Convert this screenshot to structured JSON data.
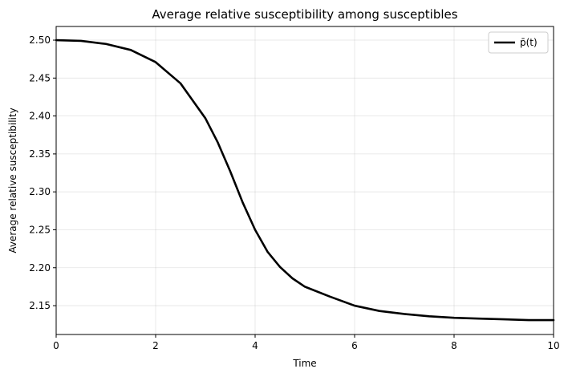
{
  "chart_data": {
    "type": "line",
    "title": "Average relative susceptibility among susceptibles",
    "xlabel": "Time",
    "ylabel": "Average relative susceptibility",
    "xlim": [
      0,
      10
    ],
    "ylim": [
      2.112,
      2.518
    ],
    "xticks": [
      0,
      2,
      4,
      6,
      8,
      10
    ],
    "xtick_labels": [
      "0",
      "2",
      "4",
      "6",
      "8",
      "10"
    ],
    "yticks": [
      2.15,
      2.2,
      2.25,
      2.3,
      2.35,
      2.4,
      2.45,
      2.5
    ],
    "ytick_labels": [
      "2.15",
      "2.20",
      "2.25",
      "2.30",
      "2.35",
      "2.40",
      "2.45",
      "2.50"
    ],
    "grid": true,
    "legend_position": "top-right",
    "series": [
      {
        "name": "p̄(t)",
        "color": "#000000",
        "x": [
          0,
          0.5,
          1,
          1.5,
          2,
          2.5,
          3,
          3.25,
          3.5,
          3.75,
          4,
          4.25,
          4.5,
          4.75,
          5,
          5.5,
          6,
          6.5,
          7,
          7.5,
          8,
          8.5,
          9,
          9.5,
          10
        ],
        "y": [
          2.5,
          2.499,
          2.495,
          2.487,
          2.471,
          2.443,
          2.397,
          2.365,
          2.327,
          2.286,
          2.25,
          2.221,
          2.201,
          2.186,
          2.175,
          2.162,
          2.15,
          2.143,
          2.139,
          2.136,
          2.134,
          2.133,
          2.132,
          2.131,
          2.131
        ]
      }
    ]
  }
}
